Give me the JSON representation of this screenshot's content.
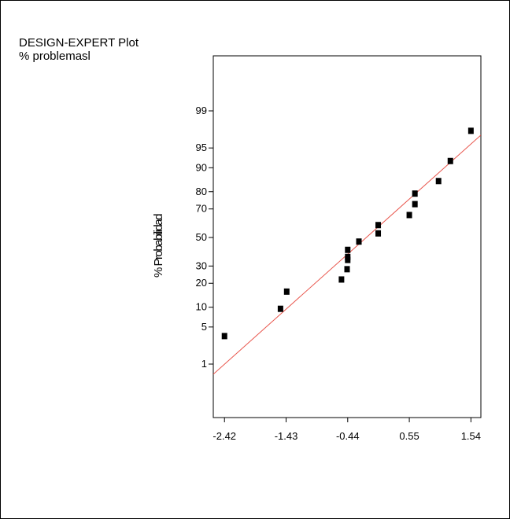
{
  "header": {
    "line1": "DESIGN-EXPERT Plot",
    "line2": "% problemasl"
  },
  "chart_data": {
    "type": "scatter",
    "title": "",
    "xlabel": "",
    "ylabel": "% Probabilidad",
    "x_ticks": [
      "-2.42",
      "-1.43",
      "-0.44",
      "0.55",
      "1.54"
    ],
    "y_ticks": [
      "1",
      "5",
      "10",
      "20",
      "30",
      "50",
      "70",
      "80",
      "90",
      "95",
      "99"
    ],
    "xlim": [
      -2.6,
      1.7
    ],
    "y_scale": "normal-probability",
    "ylim": [
      0.1,
      99.9
    ],
    "grid": false,
    "series": [
      {
        "marker_color": "#000000",
        "points": [
          {
            "x": -2.42,
            "y": 3.5
          },
          {
            "x": -1.52,
            "y": 9.5
          },
          {
            "x": -1.42,
            "y": 16
          },
          {
            "x": -0.54,
            "y": 22
          },
          {
            "x": -0.45,
            "y": 28
          },
          {
            "x": -0.44,
            "y": 34
          },
          {
            "x": -0.44,
            "y": 36
          },
          {
            "x": -0.44,
            "y": 41
          },
          {
            "x": -0.26,
            "y": 47
          },
          {
            "x": 0.05,
            "y": 53
          },
          {
            "x": 0.05,
            "y": 59
          },
          {
            "x": 0.55,
            "y": 66
          },
          {
            "x": 0.64,
            "y": 73
          },
          {
            "x": 0.64,
            "y": 79
          },
          {
            "x": 1.02,
            "y": 85
          },
          {
            "x": 1.21,
            "y": 92
          },
          {
            "x": 1.54,
            "y": 97.5
          }
        ]
      }
    ],
    "fit_line": {
      "color": "#e8534a",
      "from": {
        "x": -2.6,
        "y": 0.6
      },
      "to": {
        "x": 1.7,
        "y": 97
      }
    }
  }
}
